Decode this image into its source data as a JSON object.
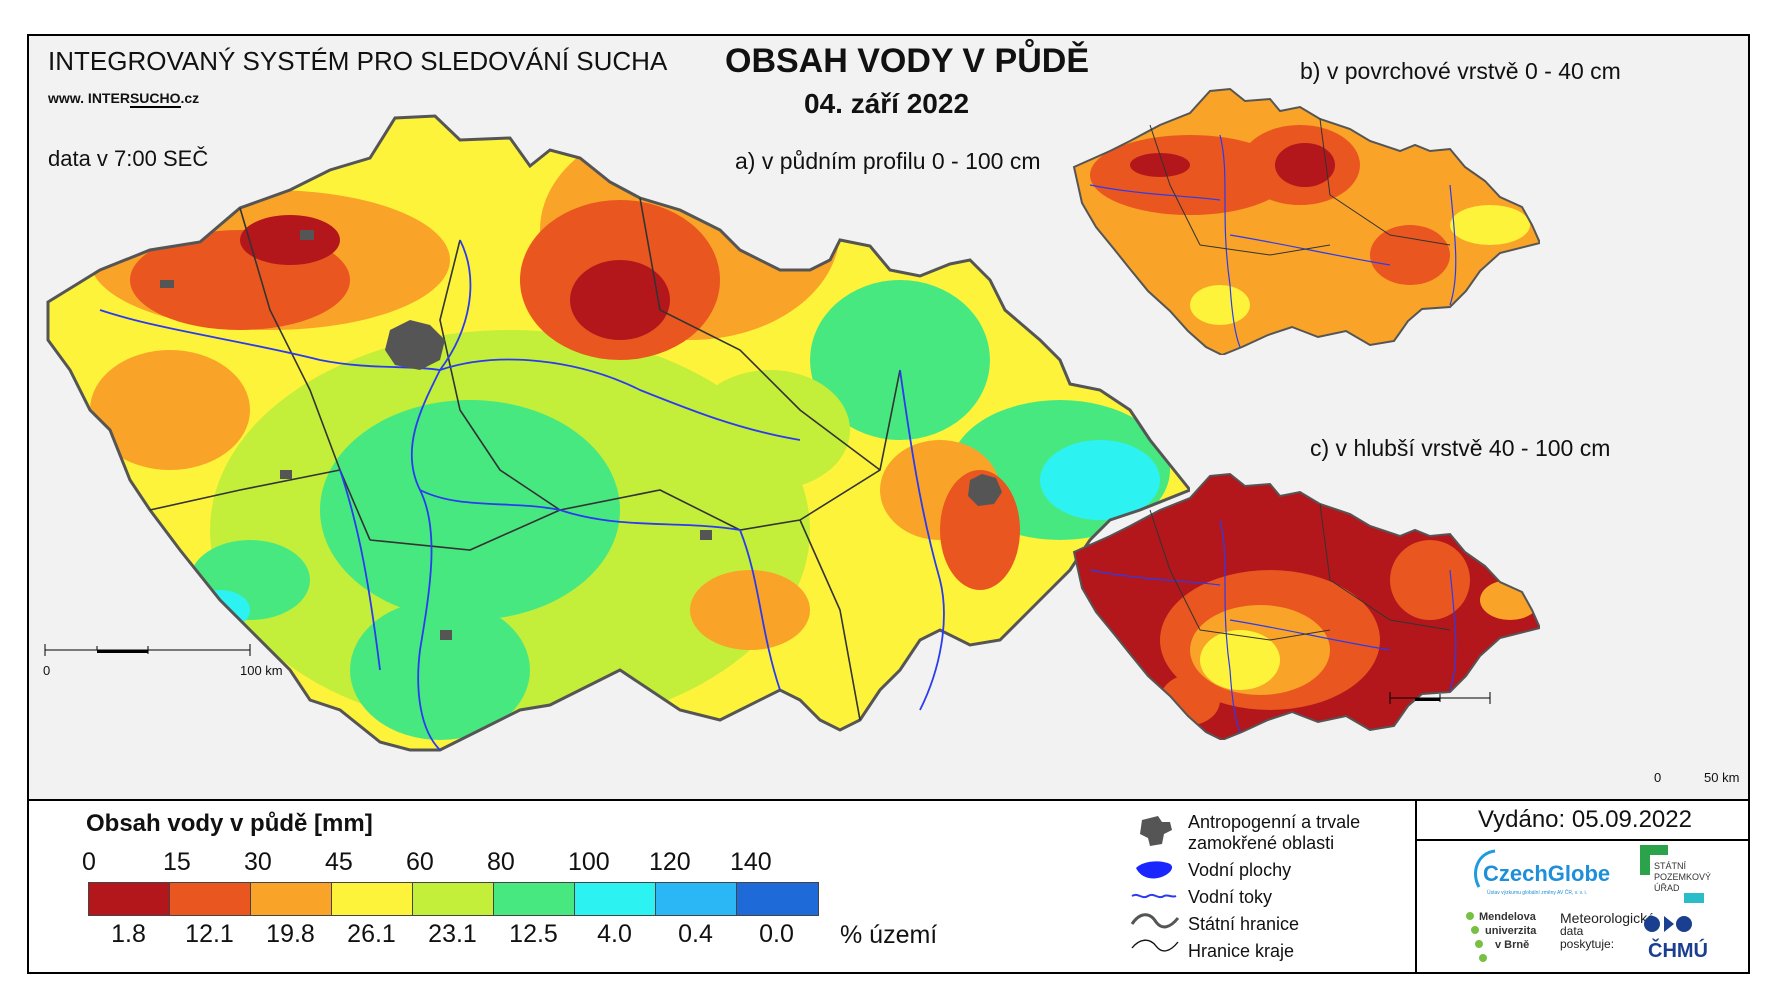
{
  "header": {
    "system": "INTEGROVANÝ SYSTÉM PRO SLEDOVÁNÍ SUCHA",
    "url_prefix": "www.  INTER",
    "url_mid": "SUCHO",
    "url_suffix": ".cz",
    "data_time": "data v 7:00 SEČ",
    "title": "OBSAH VODY V PŮDĚ",
    "date": "04. září 2022"
  },
  "maps": {
    "a_label": "a) v půdním profilu 0 - 100 cm",
    "b_label": "b) v povrchové vrstvě 0 - 40 cm",
    "c_label": "c) v hlubší vrstvě 40 - 100 cm",
    "scale_main": {
      "zero": "0",
      "end": "100 km"
    },
    "scale_small": {
      "zero": "0",
      "end": "50 km"
    }
  },
  "legend": {
    "title": "Obsah vody v půdě  [mm]",
    "ticks": [
      "0",
      "15",
      "30",
      "45",
      "60",
      "80",
      "100",
      "120",
      "140"
    ],
    "colors": [
      "#b3171b",
      "#e9561f",
      "#f9a328",
      "#fdf33a",
      "#c3ee3a",
      "#48e881",
      "#2cf2f2",
      "#2bb7f5",
      "#1f6ad9"
    ],
    "percents": [
      "1.8",
      "12.1",
      "19.8",
      "26.1",
      "23.1",
      "12.5",
      "4.0",
      "0.4",
      "0.0"
    ],
    "percent_label": "% území"
  },
  "symbols": [
    {
      "icon": "urban-area-icon",
      "label1": "Antropogenní a trvale",
      "label2": "zamokřené oblasti"
    },
    {
      "icon": "water-body-icon",
      "label1": "Vodní plochy"
    },
    {
      "icon": "river-icon",
      "label1": "Vodní toky"
    },
    {
      "icon": "state-border-icon",
      "label1": "Státní hranice"
    },
    {
      "icon": "region-border-icon",
      "label1": "Hranice kraje"
    }
  ],
  "issued": "Vydáno: 05.09.2022",
  "logos": {
    "czechglobe": "CzechGlobe",
    "czechglobe_sub": "Ústav výzkumu globální změny AV ČR, v. v. i.",
    "spu1": "STÁTNÍ",
    "spu2": "POZEMKOVÝ",
    "spu3": "ÚŘAD",
    "mendel1": "Mendelova",
    "mendel2": "univerzita",
    "mendel3": "v Brně",
    "meteo1": "Meteorologická",
    "meteo2": "data",
    "meteo3": "poskytuje:",
    "chmu": "ČHMÚ"
  }
}
